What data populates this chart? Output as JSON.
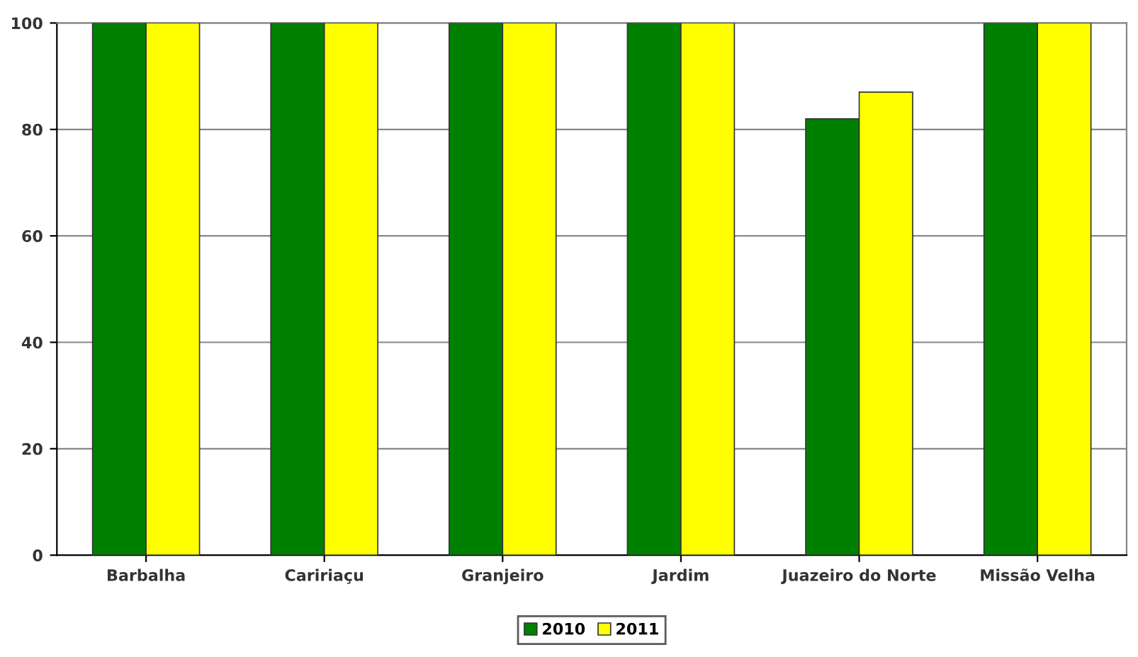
{
  "chart_data": {
    "type": "bar",
    "categories": [
      "Barbalha",
      "Caririaçu",
      "Granjeiro",
      "Jardim",
      "Juazeiro do Norte",
      "Missão Velha"
    ],
    "series": [
      {
        "name": "2010",
        "color": "#008000",
        "values": [
          100,
          100,
          100,
          100,
          82,
          100
        ]
      },
      {
        "name": "2011",
        "color": "#ffff00",
        "values": [
          100,
          100,
          100,
          100,
          87,
          100
        ]
      }
    ],
    "ylim": [
      0,
      100
    ],
    "yticks": [
      0,
      20,
      40,
      60,
      80,
      100
    ],
    "grid": "y",
    "legend": "bottom"
  }
}
